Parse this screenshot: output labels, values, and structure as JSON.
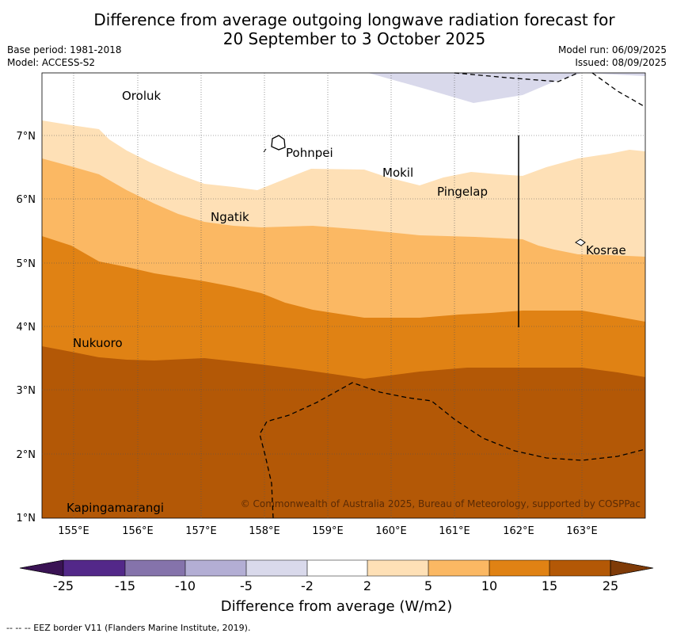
{
  "title_line1": "Difference from average outgoing longwave radiation forecast for",
  "title_line2": "20 September to 3 October 2025",
  "base_period": "Base period: 1981-2018",
  "model": "Model: ACCESS-S2",
  "model_run": "Model run: 06/09/2025",
  "issued": "Issued: 08/09/2025",
  "copyright": "© Commonwealth of Australia 2025, Bureau of Meteorology, supported by COSPPac",
  "lon_labels": [
    "155°E",
    "156°E",
    "157°E",
    "158°E",
    "159°E",
    "160°E",
    "161°E",
    "162°E",
    "163°E"
  ],
  "lat_labels": [
    "7°N",
    "6°N",
    "5°N",
    "4°N",
    "3°N",
    "2°N",
    "1°N"
  ],
  "places": {
    "oroluk": "Oroluk",
    "pohnpei": "Pohnpei",
    "mokil": "Mokil",
    "pingelap": "Pingelap",
    "ngatik": "Ngatik",
    "kosrae": "Kosrae",
    "nukuoro": "Nukuoro",
    "kapingamarangi": "Kapingamarangi"
  },
  "colorbar": {
    "ticks": [
      "-25",
      "-15",
      "-10",
      "-5",
      "-2",
      "2",
      "5",
      "10",
      "15",
      "25"
    ],
    "colors": [
      "#3a1354",
      "#532889",
      "#8573ab",
      "#b3aed4",
      "#d9d9eb",
      "#ffffff",
      "#fee0b6",
      "#fbb863",
      "#e08214",
      "#b35806",
      "#7f3b08"
    ],
    "title": "Difference from average (W/m2)"
  },
  "footnote": "--  --  -- EEZ border V11 (Flanders Marine Institute, 2019)."
}
